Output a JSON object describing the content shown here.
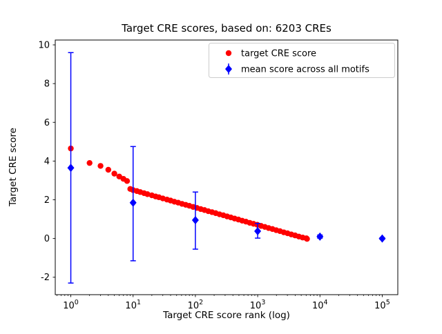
{
  "figure": {
    "title": "Target CRE scores, based on: 6203 CREs",
    "xlabel": "Target CRE score rank (log)",
    "ylabel": "Target CRE score"
  },
  "chart_data": {
    "type": "scatter",
    "title": "Target CRE scores, based on: 6203 CREs",
    "xlabel": "Target CRE score rank (log)",
    "ylabel": "Target CRE score",
    "x_scale": "log",
    "xlim_log": [
      -0.25,
      5.25
    ],
    "ylim": [
      -2.9,
      10.25
    ],
    "x_ticks": [
      1,
      10,
      100,
      1000,
      10000,
      100000
    ],
    "x_tick_labels": [
      "10^0",
      "10^1",
      "10^2",
      "10^3",
      "10^4",
      "10^5"
    ],
    "y_ticks": [
      -2,
      0,
      2,
      4,
      6,
      8,
      10
    ],
    "grid": false,
    "legend": {
      "position": "upper right"
    },
    "colors": {
      "target": "#ff0000",
      "mean": "#0000ff"
    },
    "series": [
      {
        "name": "target CRE score",
        "marker": "circle",
        "color": "#ff0000",
        "error_bars": false,
        "points": [
          [
            1,
            4.65
          ],
          [
            2,
            3.9
          ],
          [
            3,
            3.75
          ],
          [
            4,
            3.55
          ],
          [
            5,
            3.35
          ],
          [
            6,
            3.2
          ],
          [
            7,
            3.08
          ],
          [
            8,
            2.97
          ],
          [
            9,
            2.56
          ],
          [
            10,
            2.5
          ],
          [
            11.5,
            2.45
          ],
          [
            13,
            2.4
          ],
          [
            15,
            2.34
          ],
          [
            17,
            2.29
          ],
          [
            20,
            2.23
          ],
          [
            23,
            2.17
          ],
          [
            26,
            2.13
          ],
          [
            30,
            2.07
          ],
          [
            35,
            2.01
          ],
          [
            40,
            1.96
          ],
          [
            46,
            1.9
          ],
          [
            53,
            1.85
          ],
          [
            61,
            1.79
          ],
          [
            70,
            1.74
          ],
          [
            80,
            1.69
          ],
          [
            92,
            1.63
          ],
          [
            106,
            1.58
          ],
          [
            122,
            1.52
          ],
          [
            140,
            1.47
          ],
          [
            161,
            1.41
          ],
          [
            185,
            1.36
          ],
          [
            212,
            1.31
          ],
          [
            244,
            1.25
          ],
          [
            281,
            1.2
          ],
          [
            323,
            1.14
          ],
          [
            371,
            1.09
          ],
          [
            427,
            1.03
          ],
          [
            491,
            0.98
          ],
          [
            564,
            0.92
          ],
          [
            649,
            0.87
          ],
          [
            746,
            0.81
          ],
          [
            858,
            0.76
          ],
          [
            987,
            0.71
          ],
          [
            1135,
            0.65
          ],
          [
            1305,
            0.6
          ],
          [
            1500,
            0.54
          ],
          [
            1726,
            0.49
          ],
          [
            1984,
            0.43
          ],
          [
            2282,
            0.38
          ],
          [
            2624,
            0.32
          ],
          [
            3017,
            0.27
          ],
          [
            3470,
            0.21
          ],
          [
            3990,
            0.16
          ],
          [
            4589,
            0.1
          ],
          [
            5277,
            0.05
          ],
          [
            6069,
            0.01
          ],
          [
            6203,
            -0.02
          ]
        ]
      },
      {
        "name": "mean score across all motifs",
        "marker": "diamond",
        "color": "#0000ff",
        "error_bars": true,
        "points": [
          [
            1,
            3.65,
            -2.3,
            9.6
          ],
          [
            10,
            1.85,
            -1.15,
            4.75
          ],
          [
            100,
            0.95,
            -0.55,
            2.4
          ],
          [
            1000,
            0.38,
            0.02,
            0.78
          ],
          [
            10000,
            0.1,
            0.02,
            0.18
          ],
          [
            100000,
            0.0,
            -0.04,
            0.04
          ]
        ]
      }
    ]
  }
}
